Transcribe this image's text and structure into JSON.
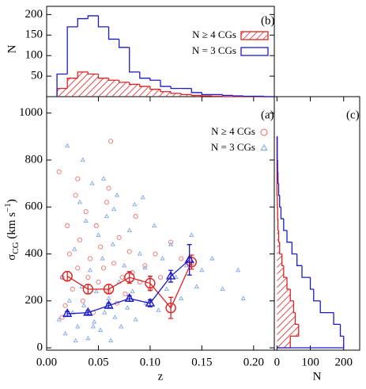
{
  "chart_data": [
    {
      "type": "scatter",
      "panel_label": "(a)",
      "xlabel": "z",
      "ylabel_parts": [
        "σ",
        "CG",
        " (km s",
        "−1",
        ")"
      ],
      "xlim": [
        0,
        0.22
      ],
      "ylim": [
        -10,
        1070
      ],
      "xticks": [
        {
          "value": 0,
          "label": "0.00"
        },
        {
          "value": 0.05,
          "label": "0.05"
        },
        {
          "value": 0.1,
          "label": "0.10"
        },
        {
          "value": 0.15,
          "label": "0.15"
        },
        {
          "value": 0.2,
          "label": "0.20"
        }
      ],
      "yticks": [
        0,
        200,
        400,
        600,
        800,
        1000
      ],
      "series": [
        {
          "name": "N ≥ 4 CGs",
          "color": "#f07070",
          "marker": "circle",
          "x": [
            0.012,
            0.015,
            0.018,
            0.02,
            0.022,
            0.025,
            0.028,
            0.03,
            0.032,
            0.035,
            0.038,
            0.04,
            0.042,
            0.045,
            0.048,
            0.05,
            0.052,
            0.055,
            0.058,
            0.06,
            0.062,
            0.065,
            0.068,
            0.07,
            0.073,
            0.076,
            0.08,
            0.083,
            0.086,
            0.09,
            0.095,
            0.1,
            0.105,
            0.11,
            0.12,
            0.13,
            0.14,
            0.015,
            0.03,
            0.06
          ],
          "values": [
            750,
            300,
            180,
            520,
            400,
            250,
            650,
            340,
            460,
            200,
            580,
            300,
            380,
            150,
            520,
            280,
            430,
            340,
            620,
            240,
            880,
            360,
            190,
            470,
            300,
            230,
            410,
            320,
            560,
            280,
            350,
            250,
            400,
            300,
            450,
            380,
            360,
            130,
            720,
            680
          ]
        },
        {
          "name": "N = 3 CGs",
          "color": "#7fa8ea",
          "marker": "triangle",
          "x": [
            0.012,
            0.015,
            0.018,
            0.02,
            0.022,
            0.025,
            0.027,
            0.03,
            0.032,
            0.034,
            0.036,
            0.038,
            0.04,
            0.042,
            0.044,
            0.046,
            0.048,
            0.05,
            0.052,
            0.054,
            0.056,
            0.058,
            0.06,
            0.062,
            0.064,
            0.066,
            0.068,
            0.07,
            0.072,
            0.075,
            0.078,
            0.08,
            0.083,
            0.086,
            0.09,
            0.093,
            0.096,
            0.1,
            0.104,
            0.108,
            0.112,
            0.116,
            0.12,
            0.125,
            0.13,
            0.135,
            0.14,
            0.145,
            0.15,
            0.16,
            0.17,
            0.185,
            0.19,
            0.028,
            0.035,
            0.045,
            0.055,
            0.065,
            0.085,
            0.095
          ],
          "values": [
            120,
            300,
            60,
            860,
            200,
            150,
            420,
            90,
            620,
            260,
            180,
            540,
            40,
            330,
            700,
            110,
            240,
            480,
            75,
            380,
            150,
            560,
            210,
            30,
            440,
            130,
            650,
            280,
            90,
            350,
            170,
            500,
            240,
            120,
            400,
            640,
            190,
            300,
            520,
            160,
            380,
            250,
            440,
            300,
            210,
            350,
            480,
            260,
            330,
            380,
            250,
            330,
            210,
            30,
            800,
            90,
            720,
            590,
            610,
            340
          ]
        }
      ],
      "binned": [
        {
          "color": "#dd2222",
          "marker": "circle",
          "x": [
            0.02,
            0.04,
            0.06,
            0.08,
            0.1,
            0.12,
            0.14
          ],
          "values": [
            305,
            250,
            250,
            300,
            275,
            170,
            365
          ],
          "errors": [
            20,
            20,
            20,
            25,
            30,
            45,
            30
          ]
        },
        {
          "color": "#1a1acc",
          "marker": "triangle",
          "x": [
            0.02,
            0.04,
            0.06,
            0.08,
            0.1,
            0.12,
            0.138
          ],
          "values": [
            145,
            150,
            180,
            210,
            190,
            305,
            375
          ],
          "errors": [
            10,
            8,
            10,
            12,
            15,
            25,
            65
          ]
        }
      ]
    },
    {
      "type": "histogram",
      "orientation": "vertical",
      "panel_label": "(b)",
      "ylabel": "N",
      "xlim": [
        0,
        0.22
      ],
      "ylim": [
        0,
        220
      ],
      "yticks": [
        50,
        100,
        150,
        200
      ],
      "bins": [
        0.01,
        0.02,
        0.03,
        0.04,
        0.05,
        0.06,
        0.07,
        0.08,
        0.09,
        0.1,
        0.11,
        0.12,
        0.13,
        0.14,
        0.15,
        0.16,
        0.17,
        0.18,
        0.19,
        0.2,
        0.21,
        0.22
      ],
      "series": [
        {
          "name": "N ≥ 4 CGs",
          "color": "#dd2222",
          "hatch": true,
          "values": [
            20,
            45,
            60,
            55,
            45,
            40,
            35,
            30,
            25,
            18,
            12,
            8,
            5,
            3,
            2,
            1,
            0,
            0,
            0,
            0,
            0
          ]
        },
        {
          "name": "N = 3 CGs",
          "color": "#1a1acc",
          "hatch": false,
          "values": [
            55,
            170,
            190,
            197,
            170,
            140,
            120,
            60,
            45,
            40,
            25,
            20,
            20,
            10,
            5,
            5,
            3,
            2,
            1,
            1,
            0
          ]
        }
      ]
    },
    {
      "type": "histogram",
      "orientation": "horizontal",
      "panel_label": "(c)",
      "xlabel": "N",
      "xlim": [
        -8,
        248
      ],
      "ylim": [
        -10,
        1070
      ],
      "xticks": [
        0,
        100,
        200
      ],
      "bins": [
        0,
        50,
        100,
        150,
        200,
        250,
        300,
        350,
        400,
        450,
        500,
        550,
        600,
        650,
        700,
        750,
        800,
        850,
        900
      ],
      "series": [
        {
          "name": "N ≥ 4 CGs",
          "color": "#dd2222",
          "hatch": true,
          "values": [
            40,
            65,
            55,
            50,
            40,
            30,
            20,
            15,
            8,
            5,
            3,
            2,
            1,
            0,
            0,
            0,
            0,
            0
          ]
        },
        {
          "name": "N = 3 CGs",
          "color": "#1a1acc",
          "hatch": false,
          "values": [
            200,
            190,
            170,
            130,
            110,
            100,
            75,
            60,
            45,
            30,
            20,
            12,
            8,
            5,
            3,
            2,
            1,
            1
          ]
        }
      ]
    }
  ]
}
